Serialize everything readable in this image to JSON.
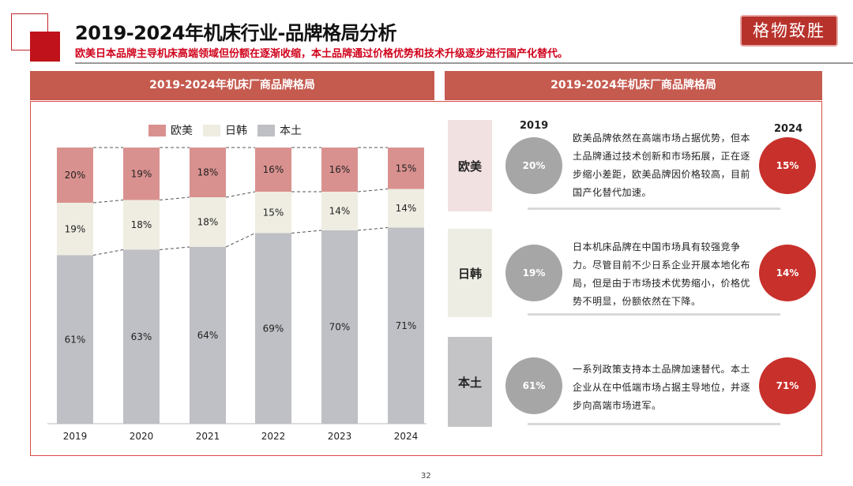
{
  "header": {
    "title": "2019-2024年机床行业-品牌格局分析",
    "subtitle": "欧美日本品牌主导机床高端领域但份额在逐渐收缩，本土品牌通过价格优势和技术升级逐步进行国产化替代。",
    "logo": "格物致胜"
  },
  "left_panel": {
    "title": "2019-2024年机床厂商品牌格局"
  },
  "right_panel": {
    "title": "2019-2024年机床厂商品牌格局",
    "year_start": "2019",
    "year_end": "2024",
    "rows": [
      {
        "category": "欧美",
        "start": "20%",
        "end": "15%",
        "text": "欧美品牌依然在高端市场占据优势，但本土品牌通过技术创新和市场拓展，正在逐步缩小差距，欧美品牌因价格较高，目前国产化替代加速。",
        "bg": "#f2e1e1"
      },
      {
        "category": "日韩",
        "start": "19%",
        "end": "14%",
        "text": "日本机床品牌在中国市场具有较强竞争力。尽管目前不少日系企业开展本地化布局，但是由于市场技术优势缩小，价格优势不明显，份额依然在下降。",
        "bg": "#eeede4"
      },
      {
        "category": "本土",
        "start": "61%",
        "end": "71%",
        "text": "一系列政策支持本土品牌加速替代。本土企业从在中低端市场占据主导地位，并逐步向高端市场进军。",
        "bg": "#c4c4c6"
      }
    ]
  },
  "chart_data": {
    "type": "bar",
    "stacked": true,
    "categories": [
      "2019",
      "2020",
      "2021",
      "2022",
      "2023",
      "2024"
    ],
    "ylim": [
      0,
      100
    ],
    "unit": "%",
    "grid": false,
    "legend": "top",
    "series": [
      {
        "name": "本土",
        "color": "#bfc0c5",
        "values": [
          61,
          63,
          64,
          69,
          70,
          71
        ]
      },
      {
        "name": "日韩",
        "color": "#efede2",
        "values": [
          19,
          18,
          18,
          15,
          14,
          14
        ]
      },
      {
        "name": "欧美",
        "color": "#d9918f",
        "values": [
          20,
          19,
          18,
          16,
          16,
          15
        ]
      }
    ]
  },
  "colors": {
    "accent": "#c55a4f",
    "red_circle": "#c8302b",
    "gray_circle": "#a6a6a6"
  },
  "page_number": "32"
}
